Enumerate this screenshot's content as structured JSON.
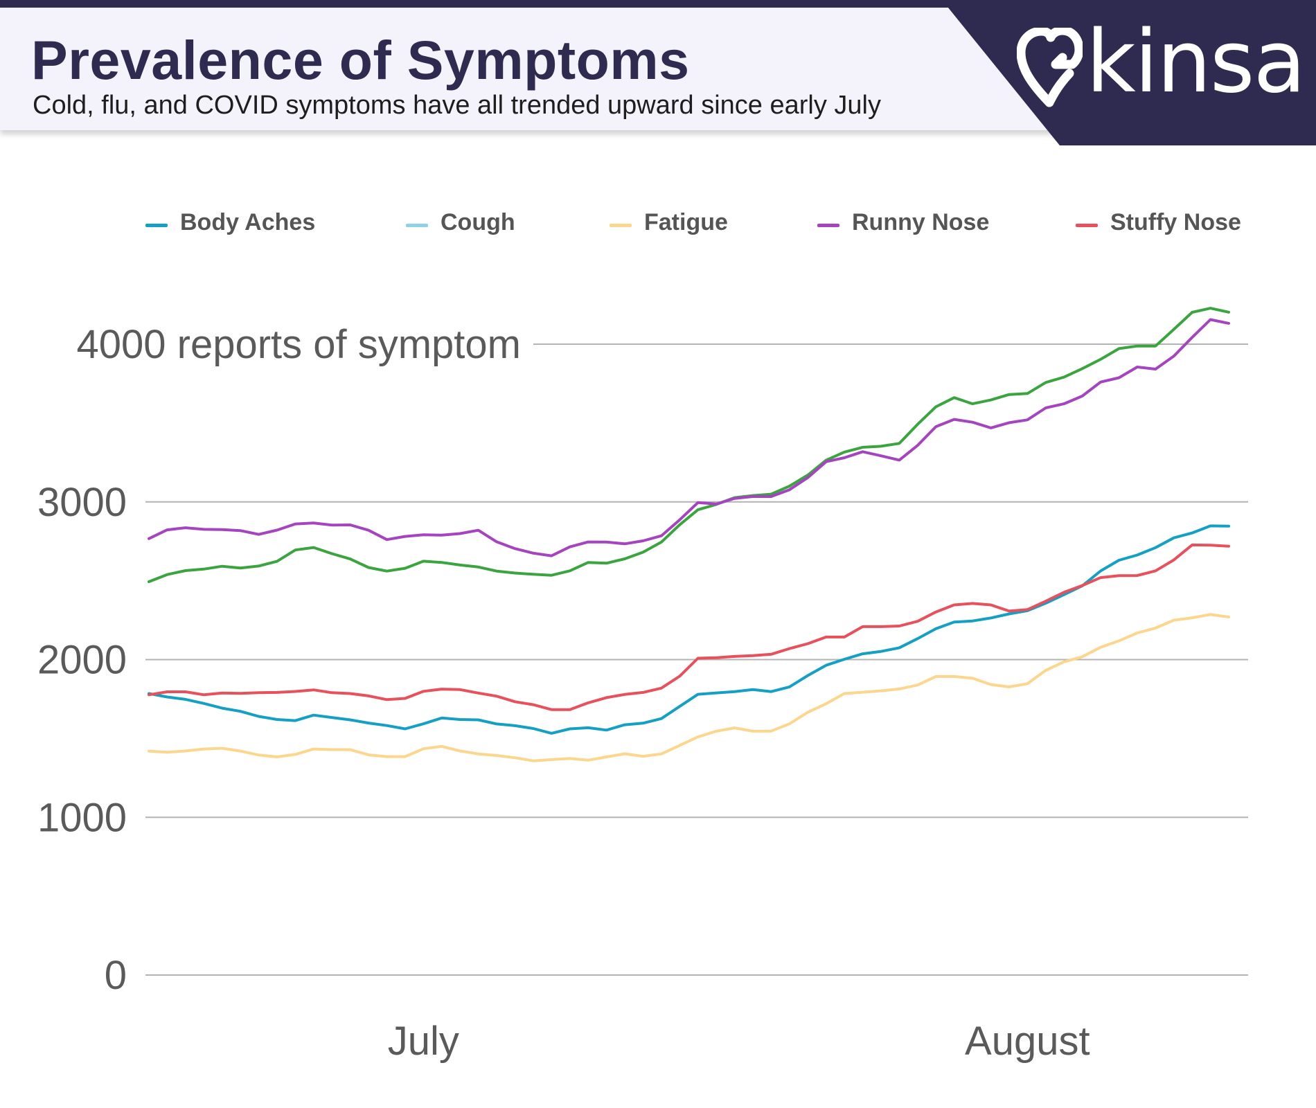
{
  "header": {
    "title": "Prevalence of Symptoms",
    "subtitle": "Cold, flu, and COVID symptoms have all trended upward since early July"
  },
  "brand": {
    "name": "kinsa",
    "icon": "kinsa-heart-logo-icon",
    "color": "#2f2a50"
  },
  "chart_data": {
    "type": "line",
    "title": "Prevalence of Symptoms",
    "subtitle": "Cold, flu, and COVID symptoms have all trended upward since early July",
    "ylabel": "",
    "ylim": [
      0,
      4000
    ],
    "yticks": [
      {
        "value": 0,
        "label": "0"
      },
      {
        "value": 1000,
        "label": "1000"
      },
      {
        "value": 2000,
        "label": "2000"
      },
      {
        "value": 3000,
        "label": "3000"
      },
      {
        "value": 4000,
        "label": "4000 reports of symptom"
      }
    ],
    "xticks": [
      {
        "index": 15,
        "label": "July"
      },
      {
        "index": 48,
        "label": "August"
      }
    ],
    "grid": true,
    "legend_position": "top",
    "series": [
      {
        "name": "Body Aches",
        "color": "#13a0c4",
        "values": [
          1785,
          1763,
          1748,
          1722,
          1692,
          1672,
          1640,
          1620,
          1613,
          1648,
          1633,
          1618,
          1598,
          1582,
          1561,
          1593,
          1630,
          1620,
          1618,
          1592,
          1581,
          1563,
          1533,
          1561,
          1568,
          1553,
          1587,
          1597,
          1626,
          1703,
          1780,
          1789,
          1797,
          1810,
          1797,
          1827,
          1899,
          1964,
          2002,
          2037,
          2052,
          2075,
          2133,
          2196,
          2238,
          2245,
          2264,
          2290,
          2310,
          2358,
          2412,
          2468,
          2562,
          2630,
          2663,
          2710,
          2772,
          2803,
          2848,
          2846
        ]
      },
      {
        "name": "Cough",
        "color": "#8ed1e9",
        "values": []
      },
      {
        "name": "Fatigue",
        "color": "#fcd68c",
        "values": [
          1420,
          1413,
          1421,
          1433,
          1438,
          1420,
          1395,
          1383,
          1399,
          1433,
          1429,
          1429,
          1396,
          1385,
          1385,
          1435,
          1450,
          1421,
          1402,
          1392,
          1378,
          1358,
          1366,
          1373,
          1362,
          1383,
          1403,
          1387,
          1402,
          1456,
          1510,
          1546,
          1567,
          1546,
          1547,
          1593,
          1666,
          1720,
          1785,
          1793,
          1802,
          1814,
          1839,
          1893,
          1893,
          1882,
          1842,
          1827,
          1847,
          1932,
          1986,
          2018,
          2078,
          2119,
          2169,
          2200,
          2250,
          2265,
          2286,
          2270
        ]
      },
      {
        "name": "Runny Nose",
        "color": "#a543c0",
        "values": [
          2767,
          2823,
          2836,
          2826,
          2824,
          2818,
          2794,
          2821,
          2860,
          2866,
          2853,
          2854,
          2820,
          2761,
          2781,
          2791,
          2789,
          2799,
          2820,
          2747,
          2704,
          2675,
          2658,
          2715,
          2746,
          2745,
          2734,
          2753,
          2785,
          2886,
          2996,
          2986,
          3022,
          3034,
          3034,
          3077,
          3154,
          3255,
          3280,
          3318,
          3292,
          3265,
          3358,
          3477,
          3523,
          3505,
          3469,
          3502,
          3520,
          3596,
          3622,
          3671,
          3760,
          3787,
          3855,
          3842,
          3924,
          4043,
          4156,
          4132
        ]
      },
      {
        "name": "Stuffy Nose",
        "color": "#e8505b",
        "values": [
          1777,
          1796,
          1796,
          1777,
          1788,
          1786,
          1790,
          1792,
          1798,
          1808,
          1790,
          1785,
          1770,
          1746,
          1754,
          1799,
          1813,
          1810,
          1788,
          1768,
          1733,
          1714,
          1683,
          1683,
          1726,
          1759,
          1779,
          1792,
          1819,
          1895,
          2009,
          2012,
          2020,
          2025,
          2034,
          2070,
          2101,
          2143,
          2143,
          2209,
          2209,
          2213,
          2243,
          2302,
          2347,
          2356,
          2347,
          2308,
          2317,
          2370,
          2427,
          2470,
          2520,
          2532,
          2533,
          2563,
          2632,
          2727,
          2726,
          2719
        ]
      },
      {
        "name": "",
        "color": "#3aa53f",
        "values": [
          2494,
          2539,
          2564,
          2574,
          2592,
          2581,
          2593,
          2623,
          2695,
          2711,
          2672,
          2638,
          2584,
          2561,
          2579,
          2624,
          2616,
          2600,
          2587,
          2561,
          2549,
          2541,
          2535,
          2563,
          2616,
          2611,
          2639,
          2681,
          2745,
          2855,
          2950,
          2984,
          3027,
          3040,
          3049,
          3100,
          3170,
          3264,
          3316,
          3346,
          3353,
          3371,
          3492,
          3603,
          3661,
          3622,
          3646,
          3681,
          3687,
          3757,
          3791,
          3845,
          3904,
          3972,
          3988,
          3988,
          4094,
          4202,
          4228,
          4203
        ]
      }
    ]
  }
}
